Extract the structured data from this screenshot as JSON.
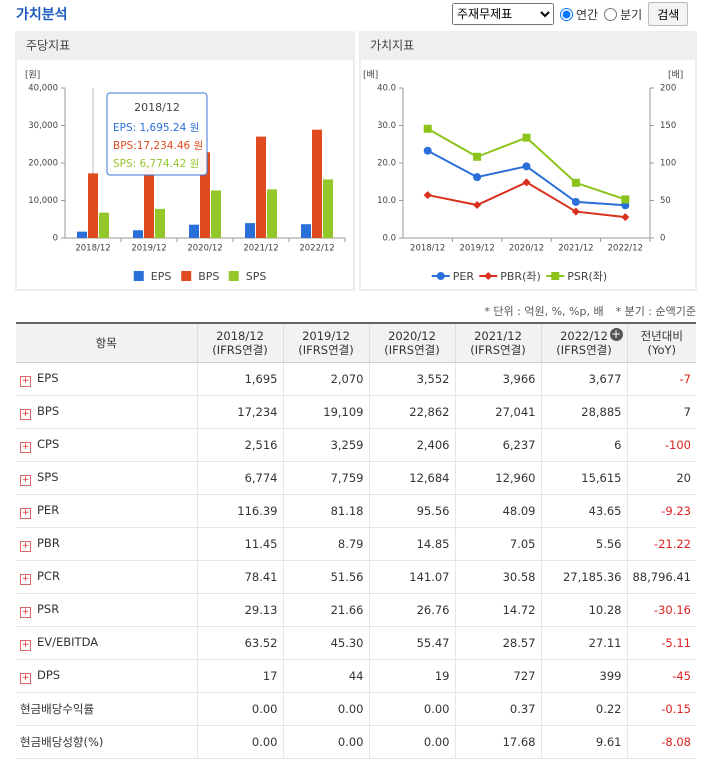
{
  "header": {
    "title": "가치분석",
    "select": "주재무제표",
    "radios": [
      "연간",
      "분기"
    ],
    "button": "검색"
  },
  "chart_data": [
    {
      "type": "bar",
      "title": "주당지표",
      "y_unit": "[원]",
      "categories": [
        "2018/12",
        "2019/12",
        "2020/12",
        "2021/12",
        "2022/12"
      ],
      "series": [
        {
          "name": "EPS",
          "color": "#2b6fd9",
          "values": [
            1695.24,
            2070,
            3552,
            3966,
            3677
          ]
        },
        {
          "name": "BPS",
          "color": "#e04a1f",
          "values": [
            17234.46,
            19109,
            22862,
            27041,
            28885
          ]
        },
        {
          "name": "SPS",
          "color": "#93c72a",
          "values": [
            6774.42,
            7759,
            12684,
            12960,
            15615
          ]
        }
      ],
      "ylim": [
        0,
        40000
      ],
      "yticks": [
        0,
        {
          "value": 10000,
          "label": "10,000"
        },
        {
          "value": 20000,
          "label": "20,000"
        },
        {
          "value": 30000,
          "label": "30,000"
        },
        {
          "value": 40000,
          "label": "40,000"
        }
      ],
      "tooltip": {
        "title": "2018/12",
        "lines": [
          "EPS:  1,695.24 원",
          "BPS:17,234.46 원",
          "SPS:  6,774.42 원"
        ]
      }
    },
    {
      "type": "line",
      "title": "가치지표",
      "y_unit": "[배]",
      "y2_unit": "[배]",
      "categories": [
        "2018/12",
        "2019/12",
        "2020/12",
        "2021/12",
        "2022/12"
      ],
      "series": [
        {
          "name": "PER",
          "color": "#2b6fd9",
          "marker": "circle",
          "axis": "y2",
          "values": [
            116.39,
            81.18,
            95.56,
            48.09,
            43.65
          ]
        },
        {
          "name": "PBR(좌)",
          "color": "#d8311d",
          "marker": "diamond",
          "values": [
            11.45,
            8.79,
            14.85,
            7.05,
            5.56
          ]
        },
        {
          "name": "PSR(좌)",
          "color": "#8cc41c",
          "marker": "square",
          "values": [
            29.13,
            21.66,
            26.76,
            14.72,
            10.28
          ]
        }
      ],
      "ylim": [
        0,
        40
      ],
      "yticks": [
        {
          "value": 0,
          "label": "0.0"
        },
        {
          "value": 10,
          "label": "10.0"
        },
        {
          "value": 20,
          "label": "20.0"
        },
        {
          "value": 30,
          "label": "30.0"
        },
        {
          "value": 40,
          "label": "40.0"
        }
      ],
      "y2lim": [
        0,
        200
      ],
      "y2ticks": [
        0,
        50,
        100,
        150,
        200
      ]
    }
  ],
  "notes": [
    "* 단위 : 억원, %, %p, 배",
    "* 분기 : 순액기준"
  ],
  "table": {
    "header": [
      [
        "항목"
      ],
      [
        "2018/12",
        "(IFRS연결)"
      ],
      [
        "2019/12",
        "(IFRS연결)"
      ],
      [
        "2020/12",
        "(IFRS연결)"
      ],
      [
        "2021/12",
        "(IFRS연결)"
      ],
      [
        "2022/12",
        "(IFRS연결)"
      ],
      [
        "전년대비",
        "(YoY)"
      ]
    ],
    "rows": [
      {
        "expandable": true,
        "cells": [
          "EPS",
          "1,695",
          "2,070",
          "3,552",
          "3,966",
          "3,677",
          "-7"
        ]
      },
      {
        "expandable": true,
        "cells": [
          "BPS",
          "17,234",
          "19,109",
          "22,862",
          "27,041",
          "28,885",
          "7"
        ]
      },
      {
        "expandable": true,
        "cells": [
          "CPS",
          "2,516",
          "3,259",
          "2,406",
          "6,237",
          "6",
          "-100"
        ]
      },
      {
        "expandable": true,
        "cells": [
          "SPS",
          "6,774",
          "7,759",
          "12,684",
          "12,960",
          "15,615",
          "20"
        ]
      },
      {
        "expandable": true,
        "cells": [
          "PER",
          "116.39",
          "81.18",
          "95.56",
          "48.09",
          "43.65",
          "-9.23"
        ]
      },
      {
        "expandable": true,
        "cells": [
          "PBR",
          "11.45",
          "8.79",
          "14.85",
          "7.05",
          "5.56",
          "-21.22"
        ]
      },
      {
        "expandable": true,
        "cells": [
          "PCR",
          "78.41",
          "51.56",
          "141.07",
          "30.58",
          "27,185.36",
          "88,796.41"
        ]
      },
      {
        "expandable": true,
        "cells": [
          "PSR",
          "29.13",
          "21.66",
          "26.76",
          "14.72",
          "10.28",
          "-30.16"
        ]
      },
      {
        "expandable": true,
        "cells": [
          "EV/EBITDA",
          "63.52",
          "45.30",
          "55.47",
          "28.57",
          "27.11",
          "-5.11"
        ]
      },
      {
        "expandable": true,
        "cells": [
          "DPS",
          "17",
          "44",
          "19",
          "727",
          "399",
          "-45"
        ]
      },
      {
        "expandable": false,
        "cells": [
          "현금배당수익률",
          "0.00",
          "0.00",
          "0.00",
          "0.37",
          "0.22",
          "-0.15"
        ]
      },
      {
        "expandable": false,
        "cells": [
          "현금배당성향(%)",
          "0.00",
          "0.00",
          "0.00",
          "17.68",
          "9.61",
          "-8.08"
        ]
      }
    ]
  }
}
